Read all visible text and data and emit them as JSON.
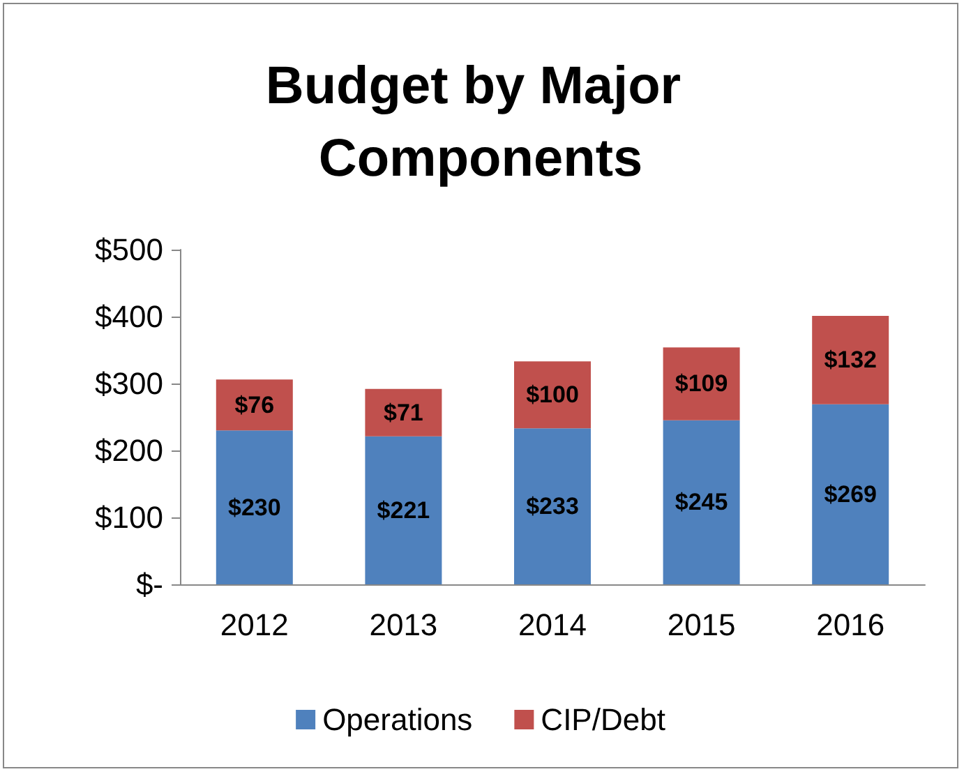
{
  "chart_data": {
    "type": "bar",
    "title": "Budget by Major Components",
    "categories": [
      "2012",
      "2013",
      "2014",
      "2015",
      "2016"
    ],
    "series": [
      {
        "name": "Operations",
        "color": "#4f81bd",
        "values": [
          230,
          221,
          233,
          245,
          269
        ],
        "value_labels": [
          "$230",
          "$221",
          "$233",
          "$245",
          "$269"
        ]
      },
      {
        "name": "CIP/Debt",
        "color": "#c0504d",
        "values": [
          76,
          71,
          100,
          109,
          132
        ],
        "value_labels": [
          "$76",
          "$71",
          "$100",
          "$109",
          "$132"
        ]
      }
    ],
    "stacked": true,
    "ylim": [
      0,
      500
    ],
    "yticks": [
      {
        "value": 0,
        "label": "$-"
      },
      {
        "value": 100,
        "label": "$100"
      },
      {
        "value": 200,
        "label": "$200"
      },
      {
        "value": 300,
        "label": "$300"
      },
      {
        "value": 400,
        "label": "$400"
      },
      {
        "value": 500,
        "label": "$500"
      }
    ],
    "grid": false,
    "legend": "bottom"
  }
}
